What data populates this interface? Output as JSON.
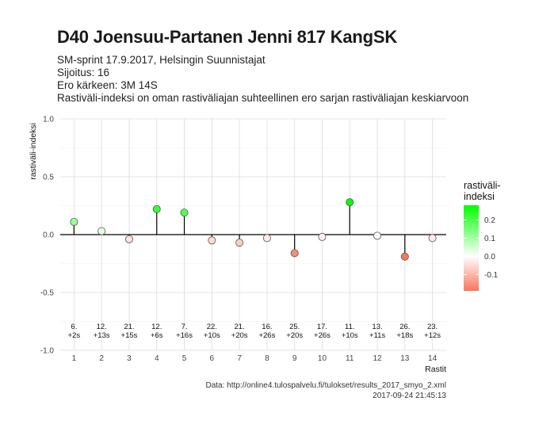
{
  "title": "D40 Joensuu-Partanen Jenni 817 KangSK",
  "subtitle_lines": [
    "SM-sprint 17.9.2017, Helsingin Suunnistajat",
    "Sijoitus: 16",
    "Ero kärkeen: 3M 14S",
    "Rastiväli-indeksi on oman rastiväliajan suhteellinen ero sarjan rastiväliajan keskiarvoon"
  ],
  "caption_lines": [
    "Data: http://online4.tulospalvelu.fi/tulokset/results_2017_smyo_2.xml",
    "2017-09-24 21:45:13"
  ],
  "chart_data": {
    "type": "lollipop",
    "xlabel": "Rastit",
    "ylabel": "rastiväli-indeksi",
    "ylim": [
      -1.0,
      1.0
    ],
    "xlim": [
      0.5,
      14.5
    ],
    "y_ticks": [
      "1.0",
      "0.5",
      "0.0",
      "-0.5",
      "-1.0"
    ],
    "y_tick_values": [
      1.0,
      0.5,
      0.0,
      -0.5,
      -1.0
    ],
    "x": [
      1,
      2,
      3,
      4,
      5,
      6,
      7,
      8,
      9,
      10,
      11,
      12,
      13,
      14
    ],
    "values": [
      0.11,
      0.03,
      -0.04,
      0.22,
      0.19,
      -0.05,
      -0.07,
      -0.03,
      -0.16,
      -0.02,
      0.28,
      -0.01,
      -0.19,
      -0.03
    ],
    "rank_labels": [
      "6.",
      "12.",
      "21.",
      "12.",
      "7.",
      "22.",
      "21.",
      "16.",
      "25.",
      "17.",
      "11.",
      "13.",
      "26.",
      "23."
    ],
    "diff_labels": [
      "+2s",
      "+13s",
      "+15s",
      "+6s",
      "+16s",
      "+10s",
      "+20s",
      "+26s",
      "+20s",
      "+26s",
      "+10s",
      "+11s",
      "+18s",
      "+12s"
    ],
    "grid": true,
    "legend": {
      "title_lines": [
        "rastiväli-",
        "indeksi"
      ],
      "ticks": [
        "0.2",
        "0.1",
        "0.0",
        "-0.1"
      ],
      "tick_values": [
        0.2,
        0.1,
        0.0,
        -0.1
      ],
      "range": [
        -0.19,
        0.28
      ],
      "placement": "right",
      "colors": {
        "low": "#f8765c",
        "mid": "#ffffff",
        "high": "#00ff00"
      }
    },
    "colors": {
      "grid_major": "#dcdcdc",
      "grid_minor": "#efefef",
      "zero_line": "#000000",
      "point_stroke": "#555555"
    }
  }
}
